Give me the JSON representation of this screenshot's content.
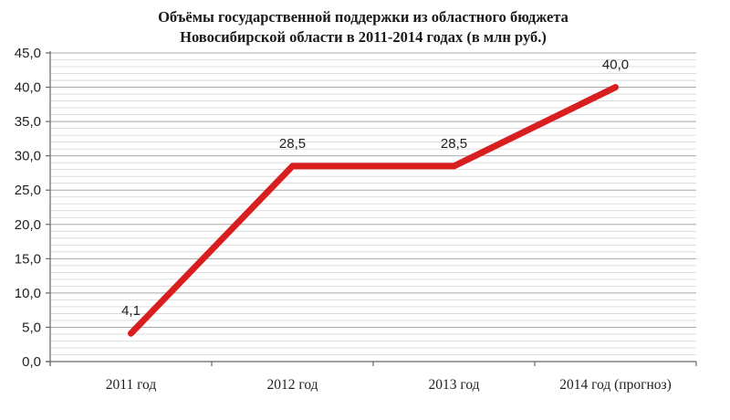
{
  "chart_data": {
    "type": "line",
    "title_lines": [
      "Объёмы государственной поддержки из областного бюджета",
      "Новосибирской области в 2011-2014 годах (в млн руб.)"
    ],
    "xlabel": "",
    "ylabel": "",
    "categories": [
      "2011 год",
      "2012 год",
      "2013 год",
      "2014 год (прогноз)"
    ],
    "ylim": [
      0,
      45
    ],
    "yticks": [
      0,
      5,
      10,
      15,
      20,
      25,
      30,
      35,
      40,
      45
    ],
    "ytick_labels": [
      "0,0",
      "5,0",
      "10,0",
      "15,0",
      "20,0",
      "25,0",
      "30,0",
      "35,0",
      "40,0",
      "45,0"
    ],
    "grid": true,
    "legend": "none",
    "series": [
      {
        "values": [
          4.1,
          28.5,
          28.5,
          40.0
        ],
        "data_labels": [
          "4,1",
          "28,5",
          "28,5",
          "40,0"
        ],
        "color": "#d81e1e"
      }
    ]
  }
}
